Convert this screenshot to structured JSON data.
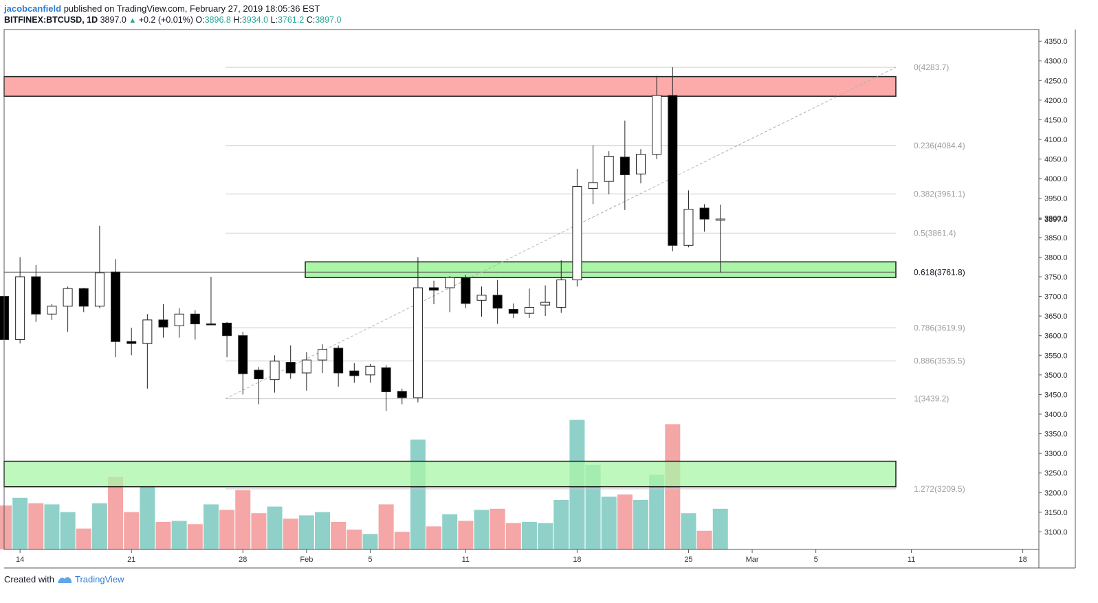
{
  "header": {
    "author": "jacobcanfield",
    "published_text": "published on TradingView.com, February 27, 2019 18:05:36 EST",
    "symbol": "BITFINEX:BTCUSD, 1D",
    "last": "3897.0",
    "change": "+0.2 (+0.01%)",
    "o_label": "O:",
    "o_value": "3896.8",
    "h_label": "H:",
    "h_value": "3934.0",
    "l_label": "L:",
    "l_value": "3761.2",
    "c_label": "C:",
    "c_value": "3897.0"
  },
  "footer": {
    "created_with": "Created with",
    "brand": "TradingView"
  },
  "colors": {
    "up_volume": "#8fd1c9",
    "down_volume": "#f5a6a6",
    "resistance_zone": "#fdaaaa",
    "support_zone": "#aaf5a7",
    "fib_line": "#c8c8c8",
    "fib_label": "#9e9e9e",
    "trend_line": "#b0b0b0"
  },
  "chart_data": {
    "type": "candlestick",
    "ylim": [
      3050,
      4380
    ],
    "y_ticks": [
      3100,
      3150,
      3200,
      3250,
      3300,
      3350,
      3400,
      3450,
      3500,
      3550,
      3600,
      3650,
      3700,
      3750,
      3800,
      3850,
      3900,
      3950,
      4000,
      4050,
      4100,
      4150,
      4200,
      4250,
      4300,
      4350
    ],
    "y_tick_labels": [
      "3100.0",
      "3150.0",
      "3200.0",
      "3250.0",
      "3300.0",
      "3350.0",
      "3400.0",
      "3450.0",
      "3500.0",
      "3550.0",
      "3600.0",
      "3650.0",
      "3700.0",
      "3750.0",
      "3800.0",
      "3850.0",
      "3900.0",
      "3950.0",
      "4000.0",
      "4050.0",
      "4100.0",
      "4150.0",
      "4200.0",
      "4250.0",
      "4300.0",
      "4350.0"
    ],
    "last_price_label": "3897.0",
    "last_price": 3897.0,
    "x_labels": [
      {
        "text": "14",
        "index": 1
      },
      {
        "text": "21",
        "index": 8
      },
      {
        "text": "28",
        "index": 15
      },
      {
        "text": "Feb",
        "index": 19
      },
      {
        "text": "5",
        "index": 23
      },
      {
        "text": "11",
        "index": 29
      },
      {
        "text": "18",
        "index": 36
      },
      {
        "text": "25",
        "index": 43
      },
      {
        "text": "Mar",
        "index": 47
      },
      {
        "text": "5",
        "index": 51
      },
      {
        "text": "11",
        "index": 57
      },
      {
        "text": "18",
        "index": 64
      }
    ],
    "candles": [
      {
        "o": 3700,
        "h": 3720,
        "l": 3590,
        "c": 3590
      },
      {
        "o": 3590,
        "h": 3800,
        "l": 3580,
        "c": 3750
      },
      {
        "o": 3750,
        "h": 3780,
        "l": 3635,
        "c": 3655
      },
      {
        "o": 3655,
        "h": 3680,
        "l": 3640,
        "c": 3675
      },
      {
        "o": 3675,
        "h": 3725,
        "l": 3610,
        "c": 3720
      },
      {
        "o": 3720,
        "h": 3722,
        "l": 3660,
        "c": 3675
      },
      {
        "o": 3675,
        "h": 3880,
        "l": 3670,
        "c": 3760
      },
      {
        "o": 3762,
        "h": 3795,
        "l": 3545,
        "c": 3585
      },
      {
        "o": 3585,
        "h": 3620,
        "l": 3550,
        "c": 3580
      },
      {
        "o": 3580,
        "h": 3655,
        "l": 3465,
        "c": 3640
      },
      {
        "o": 3640,
        "h": 3680,
        "l": 3595,
        "c": 3622
      },
      {
        "o": 3625,
        "h": 3670,
        "l": 3595,
        "c": 3655
      },
      {
        "o": 3655,
        "h": 3665,
        "l": 3590,
        "c": 3630
      },
      {
        "o": 3630,
        "h": 3750,
        "l": 3630,
        "c": 3628
      },
      {
        "o": 3632,
        "h": 3635,
        "l": 3545,
        "c": 3600
      },
      {
        "o": 3600,
        "h": 3610,
        "l": 3450,
        "c": 3503
      },
      {
        "o": 3512,
        "h": 3520,
        "l": 3425,
        "c": 3490
      },
      {
        "o": 3488,
        "h": 3550,
        "l": 3455,
        "c": 3535
      },
      {
        "o": 3532,
        "h": 3575,
        "l": 3490,
        "c": 3505
      },
      {
        "o": 3505,
        "h": 3558,
        "l": 3460,
        "c": 3538
      },
      {
        "o": 3538,
        "h": 3578,
        "l": 3505,
        "c": 3565
      },
      {
        "o": 3568,
        "h": 3575,
        "l": 3470,
        "c": 3505
      },
      {
        "o": 3510,
        "h": 3530,
        "l": 3480,
        "c": 3498
      },
      {
        "o": 3500,
        "h": 3528,
        "l": 3480,
        "c": 3522
      },
      {
        "o": 3518,
        "h": 3525,
        "l": 3408,
        "c": 3457
      },
      {
        "o": 3458,
        "h": 3465,
        "l": 3425,
        "c": 3442
      },
      {
        "o": 3442,
        "h": 3800,
        "l": 3430,
        "c": 3722
      },
      {
        "o": 3722,
        "h": 3740,
        "l": 3680,
        "c": 3716
      },
      {
        "o": 3722,
        "h": 3752,
        "l": 3660,
        "c": 3748
      },
      {
        "o": 3748,
        "h": 3755,
        "l": 3670,
        "c": 3682
      },
      {
        "o": 3690,
        "h": 3725,
        "l": 3648,
        "c": 3703
      },
      {
        "o": 3703,
        "h": 3742,
        "l": 3630,
        "c": 3670
      },
      {
        "o": 3667,
        "h": 3682,
        "l": 3645,
        "c": 3657
      },
      {
        "o": 3657,
        "h": 3720,
        "l": 3645,
        "c": 3672
      },
      {
        "o": 3678,
        "h": 3728,
        "l": 3650,
        "c": 3685
      },
      {
        "o": 3672,
        "h": 3792,
        "l": 3658,
        "c": 3742
      },
      {
        "o": 3742,
        "h": 4025,
        "l": 3725,
        "c": 3980
      },
      {
        "o": 3975,
        "h": 4085,
        "l": 3935,
        "c": 3990
      },
      {
        "o": 3993,
        "h": 4070,
        "l": 3960,
        "c": 4057
      },
      {
        "o": 4055,
        "h": 4148,
        "l": 3920,
        "c": 4010
      },
      {
        "o": 4012,
        "h": 4075,
        "l": 3988,
        "c": 4062
      },
      {
        "o": 4062,
        "h": 4262,
        "l": 4050,
        "c": 4212
      },
      {
        "o": 4212,
        "h": 4284,
        "l": 3815,
        "c": 3830
      },
      {
        "o": 3830,
        "h": 3970,
        "l": 3825,
        "c": 3922
      },
      {
        "o": 3925,
        "h": 3935,
        "l": 3865,
        "c": 3897
      },
      {
        "o": 3897,
        "h": 3934,
        "l": 3761,
        "c": 3897
      }
    ],
    "volume_ylim": [
      0,
      100
    ],
    "volume": [
      {
        "v": 40,
        "dir": "down"
      },
      {
        "v": 47,
        "dir": "up"
      },
      {
        "v": 42,
        "dir": "down"
      },
      {
        "v": 41,
        "dir": "up"
      },
      {
        "v": 34,
        "dir": "up"
      },
      {
        "v": 19,
        "dir": "down"
      },
      {
        "v": 42,
        "dir": "up"
      },
      {
        "v": 66,
        "dir": "down"
      },
      {
        "v": 34,
        "dir": "down"
      },
      {
        "v": 57,
        "dir": "up"
      },
      {
        "v": 25,
        "dir": "down"
      },
      {
        "v": 26,
        "dir": "up"
      },
      {
        "v": 23,
        "dir": "down"
      },
      {
        "v": 41,
        "dir": "up"
      },
      {
        "v": 36,
        "dir": "down"
      },
      {
        "v": 54,
        "dir": "down"
      },
      {
        "v": 33,
        "dir": "down"
      },
      {
        "v": 39,
        "dir": "up"
      },
      {
        "v": 28,
        "dir": "down"
      },
      {
        "v": 31,
        "dir": "up"
      },
      {
        "v": 34,
        "dir": "up"
      },
      {
        "v": 25,
        "dir": "down"
      },
      {
        "v": 18,
        "dir": "down"
      },
      {
        "v": 14,
        "dir": "up"
      },
      {
        "v": 41,
        "dir": "down"
      },
      {
        "v": 16,
        "dir": "down"
      },
      {
        "v": 100,
        "dir": "up"
      },
      {
        "v": 21,
        "dir": "down"
      },
      {
        "v": 32,
        "dir": "up"
      },
      {
        "v": 26,
        "dir": "down"
      },
      {
        "v": 36,
        "dir": "up"
      },
      {
        "v": 37,
        "dir": "down"
      },
      {
        "v": 24,
        "dir": "down"
      },
      {
        "v": 25,
        "dir": "up"
      },
      {
        "v": 24,
        "dir": "up"
      },
      {
        "v": 45,
        "dir": "up"
      },
      {
        "v": 118,
        "dir": "up"
      },
      {
        "v": 77,
        "dir": "up"
      },
      {
        "v": 48,
        "dir": "up"
      },
      {
        "v": 50,
        "dir": "down"
      },
      {
        "v": 45,
        "dir": "up"
      },
      {
        "v": 68,
        "dir": "up"
      },
      {
        "v": 114,
        "dir": "down"
      },
      {
        "v": 33,
        "dir": "up"
      },
      {
        "v": 17,
        "dir": "down"
      },
      {
        "v": 37,
        "dir": "up"
      }
    ],
    "fib_levels": [
      {
        "ratio": "0",
        "price": 4283.7,
        "label": "0(4283.7)"
      },
      {
        "ratio": "0.236",
        "price": 4084.4,
        "label": "0.236(4084.4)"
      },
      {
        "ratio": "0.382",
        "price": 3961.1,
        "label": "0.382(3961.1)"
      },
      {
        "ratio": "0.5",
        "price": 3861.4,
        "label": "0.5(3861.4)"
      },
      {
        "ratio": "0.618",
        "price": 3761.8,
        "label": "0.618(3761.8)"
      },
      {
        "ratio": "0.786",
        "price": 3619.9,
        "label": "0.786(3619.9)"
      },
      {
        "ratio": "0.886",
        "price": 3535.5,
        "label": "0.886(3535.5)"
      },
      {
        "ratio": "1",
        "price": 3439.2,
        "label": "1(3439.2)"
      },
      {
        "ratio": "1.272",
        "price": 3209.5,
        "label": "1.272(3209.5)"
      }
    ],
    "zones": [
      {
        "name": "resistance",
        "top": 4260,
        "bottom": 4210,
        "type": "resistance"
      },
      {
        "name": "support-0618",
        "top": 3788,
        "bottom": 3748,
        "type": "support"
      },
      {
        "name": "support-lower",
        "top": 3280,
        "bottom": 3215,
        "type": "support"
      }
    ]
  }
}
